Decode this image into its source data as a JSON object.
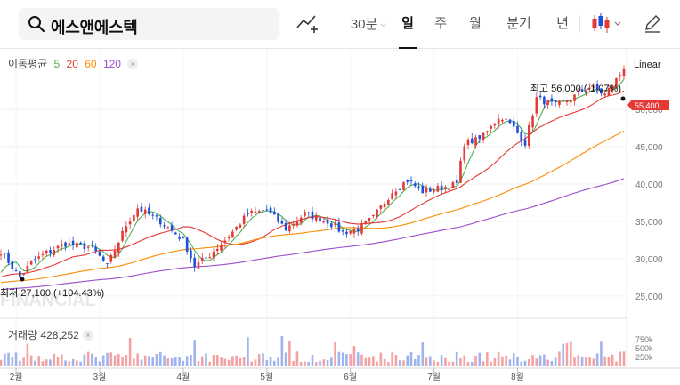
{
  "search": {
    "query": "에스앤에스텍"
  },
  "toolbar": {
    "interval": "30분",
    "periods": [
      "일",
      "주",
      "월",
      "분기",
      "년"
    ],
    "active_period": "일"
  },
  "legend": {
    "title": "이동평균",
    "ma": [
      {
        "label": "5",
        "color": "#4caf50"
      },
      {
        "label": "20",
        "color": "#e53935"
      },
      {
        "label": "60",
        "color": "#fb8c00"
      },
      {
        "label": "120",
        "color": "#9c4dcc"
      }
    ]
  },
  "scale_mode": "Linear",
  "price": {
    "current": "55,400",
    "high_label": "최고 56,000 (-1.07%)",
    "low_label": "최저 27,100 (+104.43%)"
  },
  "watermark": "FINANCIAL",
  "volume": {
    "label": "거래량 428,252"
  },
  "colors": {
    "up": "#e53935",
    "down": "#1e4fd8",
    "up_volume": "#f3a3a3",
    "down_volume": "#9fb4ee"
  },
  "chart_data": {
    "type": "candlestick",
    "y_axis_ticks": [
      "25,000",
      "30,000",
      "35,000",
      "40,000",
      "45,000",
      "50,000"
    ],
    "y_axis_tick_values": [
      25000,
      30000,
      35000,
      40000,
      45000,
      50000
    ],
    "ylim": [
      22000,
      58000
    ],
    "x_axis_labels": [
      "2월",
      "3월",
      "4월",
      "5월",
      "6월",
      "7월",
      "8월"
    ],
    "x_axis_label_days": [
      4,
      26,
      48,
      70,
      92,
      114,
      136
    ],
    "volume_ticks": [
      "750k",
      "500k",
      "250k"
    ],
    "volume_tick_values": [
      750000,
      500000,
      250000
    ],
    "close_anchors": [
      [
        0,
        31000
      ],
      [
        5,
        27500
      ],
      [
        8,
        29500
      ],
      [
        12,
        30800
      ],
      [
        17,
        32000
      ],
      [
        24,
        31500
      ],
      [
        28,
        29000
      ],
      [
        33,
        34500
      ],
      [
        36,
        36800
      ],
      [
        42,
        35000
      ],
      [
        48,
        32500
      ],
      [
        51,
        29000
      ],
      [
        55,
        30500
      ],
      [
        60,
        33000
      ],
      [
        65,
        36000
      ],
      [
        70,
        36500
      ],
      [
        75,
        34000
      ],
      [
        80,
        36000
      ],
      [
        86,
        35000
      ],
      [
        90,
        33500
      ],
      [
        94,
        34000
      ],
      [
        98,
        35500
      ],
      [
        103,
        39000
      ],
      [
        107,
        40500
      ],
      [
        111,
        39000
      ],
      [
        116,
        39500
      ],
      [
        120,
        40000
      ],
      [
        122,
        45500
      ],
      [
        126,
        46000
      ],
      [
        129,
        48000
      ],
      [
        132,
        49000
      ],
      [
        135,
        47500
      ],
      [
        138,
        45500
      ],
      [
        141,
        51500
      ],
      [
        146,
        50500
      ],
      [
        150,
        51500
      ],
      [
        155,
        53000
      ],
      [
        159,
        52000
      ],
      [
        162,
        54000
      ],
      [
        164,
        55400
      ]
    ]
  }
}
